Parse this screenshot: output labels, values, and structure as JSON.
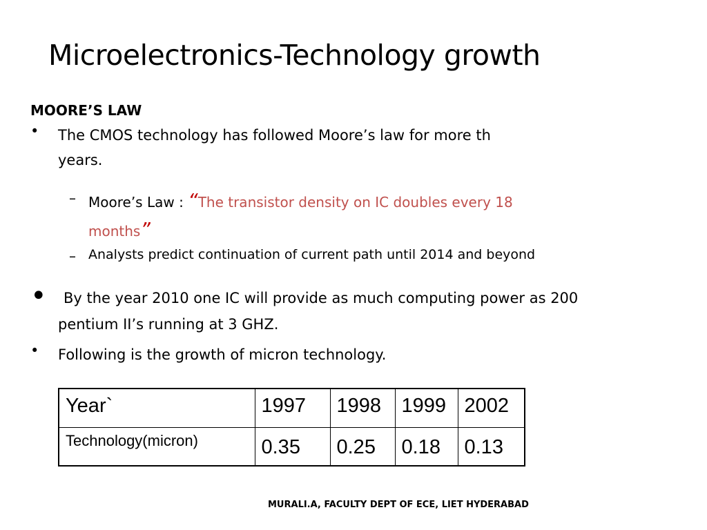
{
  "slide": {
    "title": "Microelectronics-Technology growth",
    "section_heading": "MOORE’S LAW",
    "bullets": [
      {
        "marker": "•",
        "line1": "The CMOS technology has followed Moore’s law for more th",
        "line2": "years."
      },
      {
        "marker": "•",
        "line1": "By the year 2010 one IC will provide as much computing power as 200",
        "line2": "pentium II’s running at 3 GHZ."
      },
      {
        "marker": "•",
        "line1": "Following is the growth of micron technology."
      }
    ],
    "sub_bullets": [
      {
        "dash": "–",
        "prefix": "Moore’s Law : ",
        "open_quote": "“",
        "quote_line1": "The transistor density on IC doubles every 18",
        "quote_line2": "months",
        "close_quote": "”"
      },
      {
        "dash": "–",
        "text": "Analysts predict continuation of current path until 2014 and beyond"
      }
    ],
    "table": {
      "header_label": "Year`",
      "row_label": "Technology(micron)",
      "years": [
        "1997",
        "1998",
        "1999",
        "2002"
      ],
      "values": [
        "0.35",
        "0.25",
        "0.18",
        "0.13"
      ]
    },
    "footer": "MURALI.A, FACULTY DEPT OF ECE, LIET HYDERABAD",
    "colors": {
      "quote_text": "#c0504d",
      "quote_marks": "#c00000"
    }
  }
}
